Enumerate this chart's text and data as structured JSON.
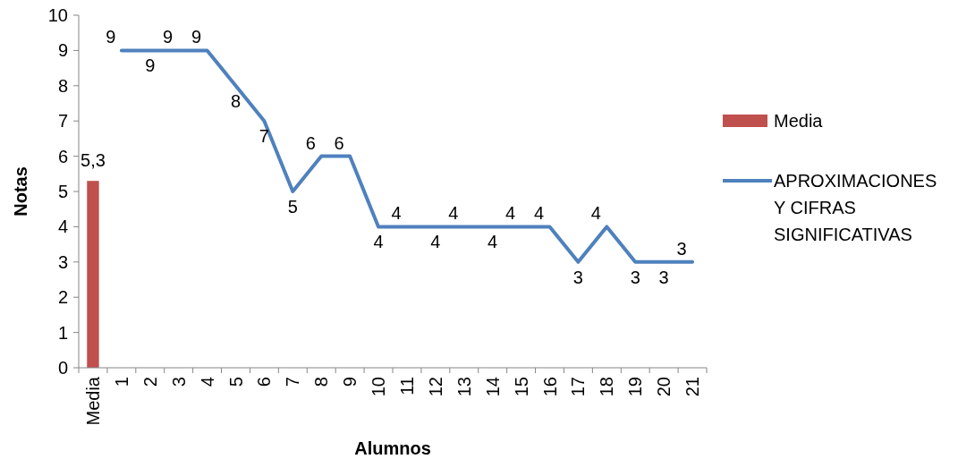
{
  "chart_data": {
    "type": "bar",
    "xlabel": "Alumnos",
    "ylabel": "Notas",
    "categories": [
      "Media",
      "1",
      "2",
      "3",
      "4",
      "5",
      "6",
      "7",
      "8",
      "9",
      "10",
      "11",
      "12",
      "13",
      "14",
      "15",
      "16",
      "17",
      "18",
      "19",
      "20",
      "21"
    ],
    "series": [
      {
        "name": "Media",
        "color": "#c0504d",
        "values": [
          5.3,
          null,
          null,
          null,
          null,
          null,
          null,
          null,
          null,
          null,
          null,
          null,
          null,
          null,
          null,
          null,
          null,
          null,
          null,
          null,
          null,
          null
        ],
        "value_labels": [
          "5,3",
          null,
          null,
          null,
          null,
          null,
          null,
          null,
          null,
          null,
          null,
          null,
          null,
          null,
          null,
          null,
          null,
          null,
          null,
          null,
          null,
          null
        ]
      },
      {
        "name": "APROXIMACIONES Y CIFRAS SIGNIFICATIVAS",
        "type": "line",
        "color": "#4f81bd",
        "values": [
          null,
          9,
          9,
          9,
          9,
          8,
          7,
          5,
          6,
          6,
          4,
          4,
          4,
          4,
          4,
          4,
          4,
          3,
          4,
          3,
          3,
          3
        ],
        "value_labels": [
          null,
          "9",
          "9",
          "9",
          "9",
          "8",
          "7",
          "5",
          "6",
          "6",
          "4",
          "4",
          "4",
          "4",
          "4",
          "4",
          "4",
          "3",
          "4",
          "3",
          "3",
          "3"
        ]
      }
    ],
    "ylim": [
      0,
      10
    ],
    "yticks": [
      0,
      1,
      2,
      3,
      4,
      5,
      6,
      7,
      8,
      9,
      10
    ],
    "legend": "right",
    "marker": "none",
    "line_style": "solid"
  }
}
